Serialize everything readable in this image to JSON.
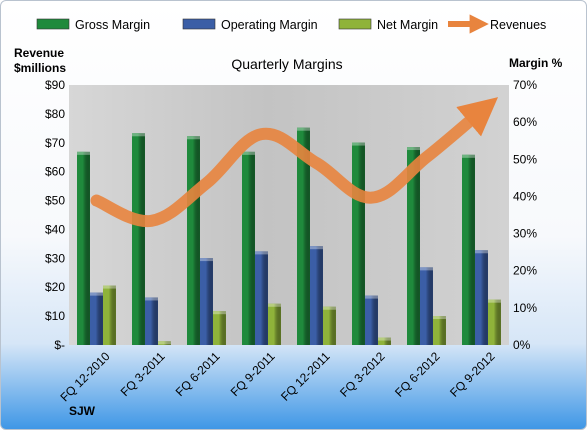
{
  "chart_data": {
    "type": "bar",
    "title": "Quarterly Margins",
    "categories": [
      "FQ 12-2010",
      "FQ 3-2011",
      "FQ 6-2011",
      "FQ 9-2011",
      "FQ 12-2011",
      "FQ 3-2012",
      "FQ 6-2012",
      "FQ 9-2012"
    ],
    "series": [
      {
        "name": "Gross Margin",
        "type": "bar",
        "axis": "right",
        "color": "#1f8a3c",
        "values": [
          52.0,
          57.0,
          56.2,
          52.0,
          58.5,
          54.5,
          53.3,
          51.2
        ]
      },
      {
        "name": "Operating Margin",
        "type": "bar",
        "axis": "right",
        "color": "#3b5ea6",
        "values": [
          14.1,
          12.8,
          23.4,
          25.2,
          26.6,
          13.3,
          20.9,
          25.5
        ]
      },
      {
        "name": "Net Margin",
        "type": "bar",
        "axis": "right",
        "color": "#8fb33a",
        "values": [
          16.0,
          1.0,
          9.1,
          11.1,
          10.3,
          2.0,
          7.8,
          12.2
        ]
      },
      {
        "name": "Revenues",
        "type": "line",
        "axis": "left",
        "color": "#e8843e",
        "values": [
          50,
          43,
          56,
          73,
          63,
          51,
          65,
          81
        ]
      }
    ],
    "y_left": {
      "label_line1": "Revenue",
      "label_line2": "$millions",
      "range": [
        0,
        90
      ],
      "ticks": [
        "$-",
        "$10",
        "$20",
        "$30",
        "$40",
        "$50",
        "$60",
        "$70",
        "$80",
        "$90"
      ]
    },
    "y_right": {
      "label": "Margin %",
      "range": [
        0,
        70
      ],
      "ticks": [
        "0%",
        "10%",
        "20%",
        "30%",
        "40%",
        "50%",
        "60%",
        "70%"
      ]
    },
    "grid": false,
    "legend_position": "top"
  },
  "footer_label": "SJW"
}
